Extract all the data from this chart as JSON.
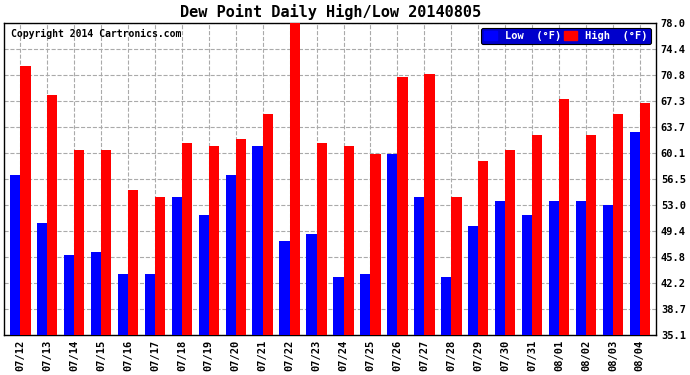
{
  "title": "Dew Point Daily High/Low 20140805",
  "copyright": "Copyright 2014 Cartronics.com",
  "background_color": "#ffffff",
  "plot_bg_color": "#ffffff",
  "grid_color": "#aaaaaa",
  "bar_width": 0.38,
  "ylim": [
    35.1,
    78.0
  ],
  "yticks": [
    35.1,
    38.7,
    42.2,
    45.8,
    49.4,
    53.0,
    56.5,
    60.1,
    63.7,
    67.3,
    70.8,
    74.4,
    78.0
  ],
  "dates": [
    "07/12",
    "07/13",
    "07/14",
    "07/15",
    "07/16",
    "07/17",
    "07/18",
    "07/19",
    "07/20",
    "07/21",
    "07/22",
    "07/23",
    "07/24",
    "07/25",
    "07/26",
    "07/27",
    "07/28",
    "07/29",
    "07/30",
    "07/31",
    "08/01",
    "08/02",
    "08/03",
    "08/04"
  ],
  "high": [
    72.0,
    68.0,
    60.5,
    60.5,
    55.0,
    54.0,
    61.5,
    61.0,
    62.0,
    65.5,
    78.0,
    61.5,
    61.0,
    60.0,
    70.5,
    71.0,
    54.0,
    59.0,
    60.5,
    62.5,
    67.5,
    62.5,
    65.5,
    67.0
  ],
  "low": [
    57.0,
    50.5,
    46.0,
    46.5,
    43.5,
    43.5,
    54.0,
    51.5,
    57.0,
    61.0,
    48.0,
    49.0,
    43.0,
    43.5,
    60.0,
    54.0,
    43.0,
    50.0,
    53.5,
    51.5,
    53.5,
    53.5,
    53.0,
    63.0
  ],
  "high_color": "#ff0000",
  "low_color": "#0000ff",
  "legend_low_label": "Low  (°F)",
  "legend_high_label": "High  (°F)"
}
